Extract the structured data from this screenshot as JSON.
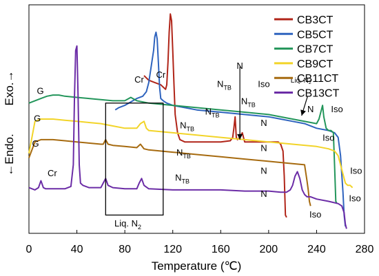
{
  "chart_data": {
    "type": "line",
    "xlabel": "Temperature (℃)",
    "ylabel_exo": "Exo.→",
    "ylabel_endo": "←Endo.",
    "xlim": [
      0,
      280
    ],
    "xticks": [
      "0",
      "40",
      "80",
      "120",
      "160",
      "200",
      "240",
      "280"
    ],
    "grid": false,
    "legend_position": "top-right",
    "series": [
      {
        "name": "CB3CT",
        "color": "#B02418",
        "x": [
          96,
          98,
          100,
          105,
          110,
          112,
          114,
          115,
          116,
          117,
          118,
          119,
          120,
          121,
          122,
          124,
          126,
          130,
          140,
          150,
          160,
          168,
          170,
          171,
          172,
          173,
          174,
          176,
          178,
          180,
          190,
          200,
          205,
          208,
          210,
          212,
          213,
          214,
          215
        ],
        "y": [
          69,
          68,
          67,
          66,
          65,
          64,
          63,
          65,
          75,
          88,
          96,
          93,
          80,
          65,
          52,
          44,
          41,
          40,
          40,
          40,
          40,
          40.5,
          42,
          46,
          51,
          42,
          41,
          42,
          44,
          40,
          40,
          40,
          40,
          40,
          39,
          36,
          25,
          8,
          7
        ]
      },
      {
        "name": "CB5CT",
        "color": "#2E63BE",
        "x": [
          72,
          75,
          80,
          85,
          90,
          95,
          98,
          100,
          102,
          104,
          105,
          106,
          107,
          108,
          109,
          110,
          112,
          115,
          120,
          130,
          140,
          160,
          180,
          200,
          210,
          220,
          230,
          240,
          250,
          255,
          258,
          260,
          262,
          263,
          264
        ],
        "y": [
          54,
          55,
          56,
          57.5,
          59,
          60,
          62,
          66,
          73,
          80,
          86,
          88,
          85,
          75,
          64,
          59,
          58,
          57,
          56,
          55,
          54,
          53,
          52,
          51,
          50,
          49,
          48,
          46,
          45,
          44,
          42,
          34,
          18,
          8,
          3
        ]
      },
      {
        "name": "CB7CT",
        "color": "#22955A",
        "x": [
          0,
          5,
          10,
          15,
          20,
          25,
          30,
          40,
          50,
          60,
          70,
          80,
          85,
          90,
          100,
          120,
          140,
          160,
          180,
          200,
          220,
          240,
          242,
          244,
          245,
          246,
          248,
          250,
          252,
          254,
          255,
          256,
          257
        ],
        "y": [
          57,
          58,
          59,
          60,
          60.5,
          60.5,
          60,
          59.5,
          59,
          58.5,
          58,
          58,
          59.5,
          58,
          57,
          56,
          55,
          54,
          53,
          52,
          50,
          48,
          50,
          54,
          56,
          51,
          46,
          45,
          45,
          44,
          30,
          14,
          13
        ]
      },
      {
        "name": "CB9CT",
        "color": "#F2D428",
        "x": [
          0,
          5,
          10,
          20,
          30,
          40,
          50,
          60,
          70,
          80,
          90,
          93,
          96,
          98,
          100,
          120,
          140,
          160,
          180,
          200,
          220,
          240,
          250,
          255,
          258,
          260,
          262,
          263,
          264,
          266,
          268,
          270
        ],
        "y": [
          35,
          49,
          50,
          50,
          49.5,
          49,
          48.5,
          48,
          47,
          46,
          46,
          48,
          49,
          46,
          45,
          44,
          43,
          42,
          41,
          40,
          39,
          38,
          37,
          36,
          34,
          30,
          26,
          24,
          22,
          21,
          21,
          20
        ]
      },
      {
        "name": "CB11CT",
        "color": "#A66A0F",
        "x": [
          0,
          5,
          10,
          20,
          30,
          40,
          50,
          60,
          62,
          64,
          66,
          70,
          80,
          90,
          93,
          96,
          100,
          120,
          140,
          160,
          180,
          200,
          220,
          230,
          232,
          233,
          234,
          235
        ],
        "y": [
          33,
          40,
          41,
          41,
          40.5,
          40,
          39.5,
          39,
          39,
          41,
          39,
          38.5,
          38,
          37.5,
          39,
          37,
          36.5,
          35.5,
          34.5,
          33.5,
          32.5,
          31.5,
          30.5,
          30,
          23,
          19,
          14,
          12
        ]
      },
      {
        "name": "CB13CT",
        "color": "#6B2CA6",
        "x": [
          0,
          5,
          8,
          10,
          12,
          14,
          20,
          30,
          35,
          37,
          38,
          39,
          40,
          41,
          42,
          43,
          45,
          50,
          55,
          60,
          62,
          64,
          66,
          70,
          80,
          90,
          92,
          94,
          96,
          100,
          120,
          140,
          160,
          180,
          200,
          210,
          215,
          218,
          220,
          222,
          224,
          226,
          228,
          230,
          232,
          235,
          240,
          250,
          258,
          261,
          263,
          264,
          265
        ],
        "y": [
          20,
          19,
          20,
          23,
          20,
          19.5,
          19.5,
          19.5,
          20.5,
          30,
          60,
          80,
          82,
          60,
          30,
          22,
          21,
          20,
          20,
          20,
          22,
          24,
          21,
          20,
          19.5,
          19.5,
          22,
          24,
          21,
          19.5,
          19,
          19,
          19,
          18.5,
          18.5,
          18,
          18,
          19,
          21,
          25,
          27,
          24,
          19,
          17,
          16,
          16,
          15,
          14,
          13,
          12,
          9,
          4,
          2
        ]
      }
    ],
    "annotations": [
      {
        "text": "G",
        "x": 9.5,
        "y": 61,
        "kind": "plain"
      },
      {
        "text": "G",
        "x": 7,
        "y": 49,
        "kind": "plain"
      },
      {
        "text": "G",
        "x": 5.5,
        "y": 38,
        "kind": "plain"
      },
      {
        "text": "Cr",
        "x": 19.5,
        "y": 25,
        "kind": "plain"
      },
      {
        "text": "Cr",
        "x": 92,
        "y": 66,
        "kind": "plain"
      },
      {
        "text": "Cr",
        "x": 110,
        "y": 68,
        "kind": "plain"
      },
      {
        "text": "N",
        "base": "N",
        "sub": "TB",
        "x": 163,
        "y": 64,
        "kind": "sub"
      },
      {
        "text": "N",
        "base": "N",
        "sub": "TB",
        "x": 183,
        "y": 56.5,
        "kind": "sub"
      },
      {
        "text": "N",
        "base": "N",
        "sub": "TB",
        "x": 153,
        "y": 52,
        "kind": "sub"
      },
      {
        "text": "N",
        "base": "N",
        "sub": "TB",
        "x": 132,
        "y": 46,
        "kind": "sub"
      },
      {
        "text": "N",
        "base": "N",
        "sub": "TB",
        "x": 129,
        "y": 34,
        "kind": "sub"
      },
      {
        "text": "N",
        "base": "N",
        "sub": "TB",
        "x": 128,
        "y": 23,
        "kind": "sub"
      },
      {
        "text": "Iso",
        "x": 196,
        "y": 64,
        "kind": "plain"
      },
      {
        "text": "N",
        "x": 196,
        "y": 47,
        "kind": "plain"
      },
      {
        "text": "N",
        "x": 196,
        "y": 36,
        "kind": "plain"
      },
      {
        "text": "N",
        "x": 196,
        "y": 26,
        "kind": "plain"
      },
      {
        "text": "N",
        "x": 196,
        "y": 16,
        "kind": "plain"
      },
      {
        "text": "N",
        "x": 176,
        "y": 72,
        "kind": "plain"
      },
      {
        "text": "N",
        "x": 235,
        "y": 53,
        "kind": "plain"
      },
      {
        "text": "Iso",
        "x": 257,
        "y": 53,
        "kind": "plain"
      },
      {
        "text": "Iso",
        "x": 250,
        "y": 40.5,
        "kind": "plain"
      },
      {
        "text": "Iso",
        "x": 273,
        "y": 26,
        "kind": "plain"
      },
      {
        "text": "Iso",
        "x": 272,
        "y": 14,
        "kind": "plain"
      },
      {
        "text": "Iso",
        "x": 239,
        "y": 7,
        "kind": "plain"
      },
      {
        "text": "Liq. N",
        "base": "Liq. N",
        "sub": "2",
        "x": 82.5,
        "y": 3,
        "kind": "sub"
      },
      {
        "text": "Liq. N",
        "base": "Liq. N",
        "sub": "2",
        "x": 227,
        "y": 66,
        "kind": "sub-small"
      }
    ],
    "arrows": [
      {
        "x1": 176,
        "y1": 73,
        "x2": 176,
        "y2": 41
      },
      {
        "x1": 232.5,
        "y1": 60,
        "x2": 227.5,
        "y2": 51.5
      }
    ],
    "box": {
      "x0": 64,
      "x1": 112,
      "y0": 8,
      "y1": 57
    }
  }
}
